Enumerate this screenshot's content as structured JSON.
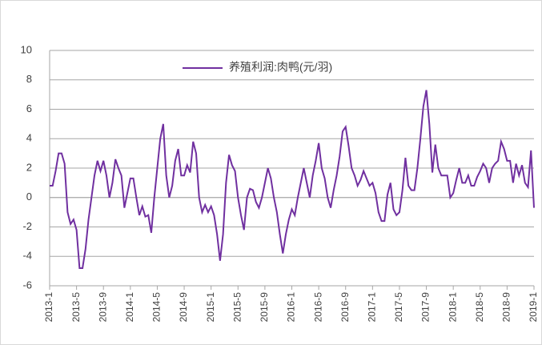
{
  "chart_data": {
    "type": "line",
    "categories": [
      "2013-1",
      null,
      null,
      null,
      null,
      null,
      null,
      null,
      null,
      "2013-5",
      null,
      null,
      null,
      null,
      null,
      null,
      null,
      null,
      "2013-9",
      null,
      null,
      null,
      null,
      null,
      null,
      null,
      null,
      "2014-1",
      null,
      null,
      null,
      null,
      null,
      null,
      null,
      null,
      "2014-5",
      null,
      null,
      null,
      null,
      null,
      null,
      null,
      null,
      "2014-9",
      null,
      null,
      null,
      null,
      null,
      null,
      null,
      null,
      "2015-1",
      null,
      null,
      null,
      null,
      null,
      null,
      null,
      null,
      "2015-5",
      null,
      null,
      null,
      null,
      null,
      null,
      null,
      null,
      "2015-9",
      null,
      null,
      null,
      null,
      null,
      null,
      null,
      null,
      "2016-1",
      null,
      null,
      null,
      null,
      null,
      null,
      null,
      null,
      "2016-5",
      null,
      null,
      null,
      null,
      null,
      null,
      null,
      null,
      "2016-9",
      null,
      null,
      null,
      null,
      null,
      null,
      null,
      null,
      "2017-1",
      null,
      null,
      null,
      null,
      null,
      null,
      null,
      null,
      "2017-5",
      null,
      null,
      null,
      null,
      null,
      null,
      null,
      null,
      "2017-9",
      null,
      null,
      null,
      null,
      null,
      null,
      null,
      null,
      "2018-1",
      null,
      null,
      null,
      null,
      null,
      null,
      null,
      null,
      "2018-5",
      null,
      null,
      null,
      null,
      null,
      null,
      null,
      null,
      "2018-9",
      null,
      null,
      null,
      null,
      null,
      null,
      null,
      null,
      "2019-1"
    ],
    "series": [
      {
        "name": "养殖利润:肉鸭(元/羽)",
        "color": "#7030a0",
        "values": [
          0.8,
          0.8,
          1.8,
          3.0,
          3.0,
          2.3,
          -1,
          -1.8,
          -1.5,
          -2.2,
          -4.8,
          -4.8,
          -3.5,
          -1.5,
          0,
          1.5,
          2.5,
          1.8,
          2.5,
          1.5,
          0,
          1,
          2.6,
          2,
          1.5,
          -0.7,
          0.3,
          1.3,
          1.3,
          0,
          -1.2,
          -0.6,
          -1.3,
          -1.2,
          -2.4,
          0,
          2,
          4,
          5,
          1.5,
          0,
          0.8,
          2.5,
          3.3,
          1.5,
          1.5,
          2.2,
          1.7,
          3.8,
          3,
          0,
          -1,
          -0.5,
          -1,
          -0.6,
          -1.2,
          -2.5,
          -4.3,
          -2.5,
          1,
          2.9,
          2.2,
          1.8,
          0,
          -1.2,
          -2.2,
          0,
          0.6,
          0.5,
          -0.3,
          -0.7,
          0,
          1,
          2,
          1.3,
          0,
          -1,
          -2.5,
          -3.8,
          -2.5,
          -1.5,
          -0.8,
          -1.2,
          0,
          1,
          2,
          1,
          0,
          1.5,
          2.5,
          3.7,
          2,
          1.3,
          0,
          -0.7,
          0.5,
          1.5,
          2.8,
          4.5,
          4.8,
          3.5,
          2,
          1.5,
          0.8,
          1.2,
          1.8,
          1.3,
          0.8,
          1,
          0.3,
          -1,
          -1.6,
          -1.6,
          0.2,
          1,
          -0.8,
          -1.2,
          -1,
          0.5,
          2.7,
          0.8,
          0.5,
          0.5,
          2,
          4,
          6.2,
          7.3,
          5,
          1.7,
          3.6,
          2,
          1.5,
          1.5,
          1.5,
          0,
          0.3,
          1.2,
          2,
          1,
          1,
          1.5,
          0.8,
          0.8,
          1.4,
          1.8,
          2.3,
          2,
          1,
          2,
          2.3,
          2.5,
          3.8,
          3.3,
          2.5,
          2.5,
          1,
          2.3,
          1.5,
          2.2,
          1,
          0.7,
          3.2,
          -0.7
        ]
      }
    ],
    "ylim": [
      -6,
      10
    ],
    "yticks": [
      -6,
      -4,
      -2,
      0,
      2,
      4,
      6,
      8,
      10
    ],
    "grid": true,
    "legend": "top"
  }
}
